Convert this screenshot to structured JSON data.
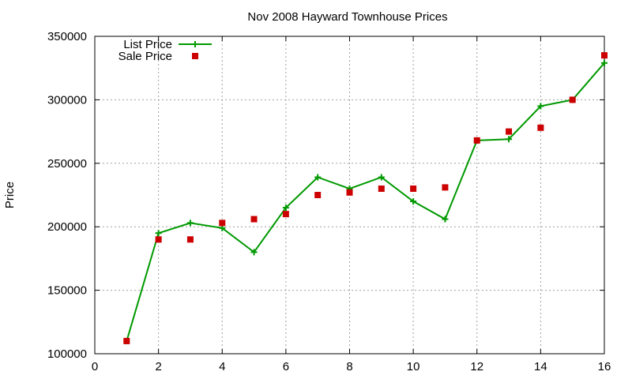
{
  "chart_data": {
    "type": "line",
    "title": "Nov 2008 Hayward Townhouse Prices",
    "xlabel": "",
    "ylabel": "Price",
    "xlim": [
      0,
      16
    ],
    "ylim": [
      100000,
      350000
    ],
    "xticks": [
      0,
      2,
      4,
      6,
      8,
      10,
      12,
      14,
      16
    ],
    "yticks": [
      100000,
      150000,
      200000,
      250000,
      300000,
      350000
    ],
    "xtick_labels": [
      "0",
      "2",
      "4",
      "6",
      "8",
      "10",
      "12",
      "14",
      "16"
    ],
    "ytick_labels": [
      "100000",
      "150000",
      "200000",
      "250000",
      "300000",
      "350000"
    ],
    "grid": true,
    "legend_position": "top-left",
    "series": [
      {
        "name": "List Price",
        "style": "line-points",
        "marker": "plus",
        "color": "#009900",
        "x": [
          1,
          2,
          3,
          4,
          5,
          6,
          7,
          8,
          9,
          10,
          11,
          12,
          13,
          14,
          15,
          16
        ],
        "y": [
          110000,
          195000,
          203000,
          199000,
          180000,
          215000,
          239000,
          230000,
          239000,
          220000,
          206000,
          268000,
          269000,
          295000,
          300000,
          329000
        ]
      },
      {
        "name": "Sale Price",
        "style": "points",
        "marker": "square",
        "color": "#cc0000",
        "x": [
          1,
          2,
          3,
          4,
          5,
          6,
          7,
          8,
          9,
          10,
          11,
          12,
          13,
          14,
          15,
          16
        ],
        "y": [
          110000,
          190000,
          190000,
          203000,
          206000,
          210000,
          225000,
          227000,
          230000,
          230000,
          231000,
          268000,
          275000,
          278000,
          300000,
          335000
        ]
      }
    ]
  }
}
